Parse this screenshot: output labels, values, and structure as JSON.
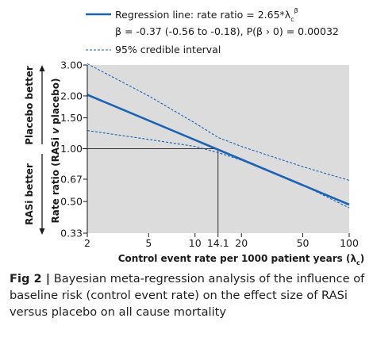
{
  "chart_data": {
    "type": "line",
    "x_scale": "log",
    "y_scale": "log",
    "xlim": [
      2,
      100
    ],
    "ylim": [
      0.33,
      3.0
    ],
    "xlabel_prefix": "Control event rate per 1000 patient years (λ",
    "xlabel_sub": "c",
    "xlabel_suffix": ")",
    "ylabel_prefix": "Rate ratio (RASi ",
    "ylabel_italic": "v",
    "ylabel_suffix": " placebo)",
    "x_ticks": [
      "2",
      "5",
      "10",
      "14.1",
      "20",
      "50",
      "100"
    ],
    "x_tick_values": [
      2,
      5,
      10,
      14.1,
      20,
      50,
      100
    ],
    "y_ticks": [
      "0.33",
      "0.50",
      "0.67",
      "1.00",
      "1.50",
      "2.00",
      "3.00"
    ],
    "y_tick_values": [
      0.33,
      0.5,
      0.67,
      1.0,
      1.5,
      2.0,
      3.0
    ],
    "region_labels": {
      "upper": "Placebo better",
      "lower": "RASi better"
    },
    "reference": {
      "x": 14.1,
      "y": 1.0
    },
    "legend": {
      "position": "top",
      "regression_label": "Regression line: rate ratio = 2.65*λ",
      "regression_sub": "c",
      "regression_sup": "β",
      "beta_text": "β = -0.37 (-0.56 to -0.18), P(β › 0) = 0.00032",
      "ci_label": "95% credible interval"
    },
    "series": [
      {
        "name": "Regression line",
        "style": "solid",
        "x": [
          2,
          100
        ],
        "y": [
          2.03,
          0.48
        ]
      },
      {
        "name": "95% credible interval (upper)",
        "style": "dashed",
        "x": [
          2,
          5,
          10,
          14.1,
          20,
          50,
          100
        ],
        "y": [
          3.05,
          2.0,
          1.4,
          1.16,
          1.03,
          0.79,
          0.66
        ]
      },
      {
        "name": "95% credible interval (lower)",
        "style": "dashed",
        "x": [
          2,
          5,
          10,
          14.1,
          20,
          50,
          100
        ],
        "y": [
          1.27,
          1.13,
          1.03,
          0.95,
          0.86,
          0.62,
          0.46
        ]
      }
    ],
    "colors": {
      "panel": "#dcdcdc",
      "line": "#1b63b5",
      "axis": "#555555",
      "text": "#1a1a1a"
    }
  },
  "caption": {
    "label": "Fig 2 |",
    "text": " Bayesian meta-regression analysis of the influence of baseline risk (control event rate) on the effect size of RASi versus placebo on all cause mortality"
  }
}
